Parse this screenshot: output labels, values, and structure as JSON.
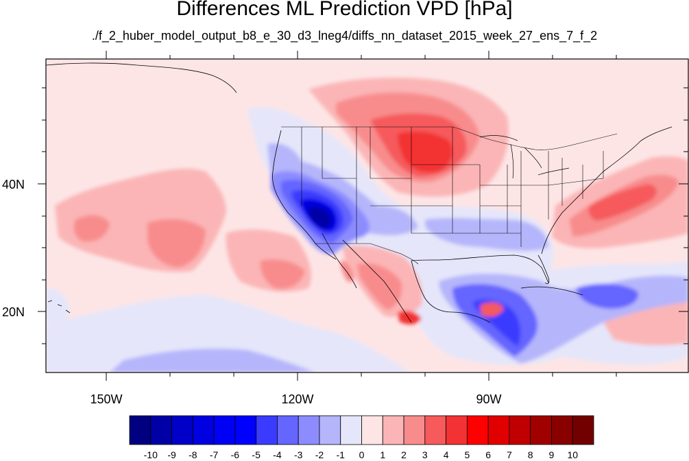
{
  "title": "Differences ML Prediction VPD [hPa]",
  "subtitle": "./f_2_huber_model_output_b8_e_30_d3_lneg4/diffs_nn_dataset_2015_week_27_ens_7_f_2",
  "map": {
    "lon_labels": [
      "150W",
      "120W",
      "90W"
    ],
    "lat_labels": [
      "40N",
      "20N"
    ],
    "colors": {
      "background": "#fde5e6",
      "frame": "#000000"
    }
  },
  "colorbar": {
    "levels": [
      "-10",
      "-9",
      "-8",
      "-7",
      "-6",
      "-5",
      "-4",
      "-3",
      "-2",
      "-1",
      "0",
      "1",
      "2",
      "3",
      "4",
      "5",
      "6",
      "7",
      "8",
      "9",
      "10"
    ],
    "colors": [
      "#000080",
      "#0000a6",
      "#0000c8",
      "#0000e0",
      "#0000f5",
      "#0000ff",
      "#3b3bff",
      "#6565ff",
      "#8c8cff",
      "#b5b5fb",
      "#e5e6fa",
      "#fde5e6",
      "#fbb5b6",
      "#f88c8d",
      "#f65a5b",
      "#f33233",
      "#ff0000",
      "#e00000",
      "#c00000",
      "#a00000",
      "#880000",
      "#730000"
    ]
  }
}
